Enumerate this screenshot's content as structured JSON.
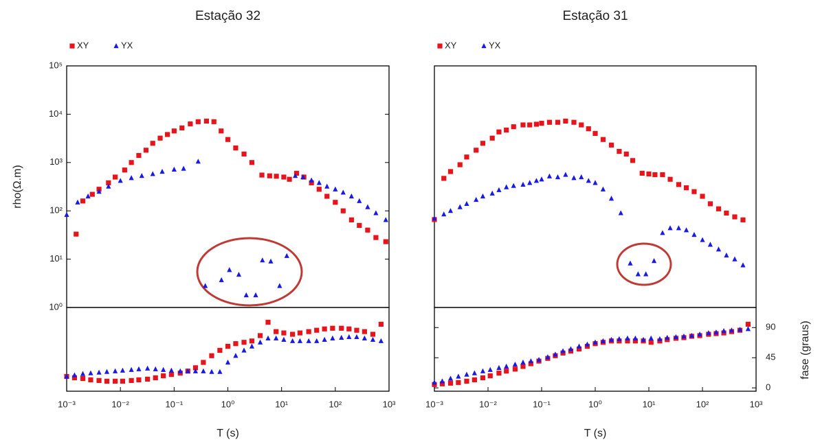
{
  "chart_data": [
    {
      "type": "scatter",
      "title": "Estação 32",
      "ylabel": "rho(Ω.m)",
      "xscale": "log",
      "yscale": "log",
      "xlim": [
        0.001,
        1000
      ],
      "ylim": [
        1,
        100000
      ],
      "yticks": [
        {
          "value": 1,
          "label": "10⁰"
        },
        {
          "value": 10,
          "label": "10¹"
        },
        {
          "value": 100,
          "label": "10²"
        },
        {
          "value": 1000,
          "label": "10³"
        },
        {
          "value": 10000,
          "label": "10⁴"
        },
        {
          "value": 100000,
          "label": "10⁵"
        }
      ],
      "series": [
        {
          "name": "XY",
          "color": "#e8141b",
          "marker": "square",
          "x": [
            0.0015,
            0.002,
            0.003,
            0.004,
            0.006,
            0.008,
            0.012,
            0.016,
            0.022,
            0.03,
            0.04,
            0.055,
            0.075,
            0.1,
            0.14,
            0.2,
            0.28,
            0.4,
            0.55,
            0.75,
            1.0,
            1.4,
            2.0,
            2.8,
            4.3,
            6,
            8,
            11,
            14,
            19,
            26,
            36,
            50,
            70,
            100,
            140,
            200,
            280,
            400,
            570,
            870
          ],
          "values": [
            33,
            160,
            220,
            280,
            380,
            500,
            700,
            1000,
            1400,
            1800,
            2500,
            3200,
            3800,
            4500,
            5200,
            6300,
            7000,
            7200,
            7000,
            4500,
            3000,
            2000,
            1500,
            1000,
            550,
            530,
            520,
            500,
            450,
            600,
            500,
            380,
            280,
            200,
            150,
            100,
            65,
            50,
            40,
            28,
            23
          ]
        },
        {
          "name": "YX",
          "color": "#1a1ae6",
          "marker": "triangle",
          "x": [
            0.001,
            0.0016,
            0.0025,
            0.004,
            0.006,
            0.01,
            0.016,
            0.025,
            0.04,
            0.06,
            0.1,
            0.15,
            0.28,
            0.38,
            0.76,
            1.07,
            1.6,
            2.2,
            3.3,
            4.4,
            6.3,
            9.2,
            12.5,
            18,
            25,
            36,
            50,
            70,
            100,
            140,
            200,
            280,
            400,
            570,
            870
          ],
          "values": [
            83,
            150,
            200,
            250,
            320,
            420,
            480,
            530,
            580,
            650,
            720,
            750,
            1050,
            2.8,
            3.7,
            6,
            4.8,
            1.8,
            1.8,
            9.5,
            9,
            2.8,
            11.7,
            530,
            500,
            430,
            380,
            320,
            280,
            240,
            200,
            160,
            120,
            90,
            65
          ]
        }
      ]
    },
    {
      "type": "scatter",
      "xlabel": "T (s)",
      "xscale": "log",
      "yscale": "linear",
      "xlim": [
        0.001,
        1000
      ],
      "ylim": [
        -5,
        120
      ],
      "xticks": [
        {
          "value": 0.001,
          "label": "10⁻³"
        },
        {
          "value": 0.01,
          "label": "10⁻²"
        },
        {
          "value": 0.1,
          "label": "10⁻¹"
        },
        {
          "value": 1,
          "label": "10⁰"
        },
        {
          "value": 10,
          "label": "10¹"
        },
        {
          "value": 100,
          "label": "10²"
        },
        {
          "value": 1000,
          "label": "10³"
        }
      ],
      "x": [
        0.001,
        0.0014,
        0.002,
        0.0028,
        0.004,
        0.0056,
        0.008,
        0.011,
        0.016,
        0.022,
        0.032,
        0.045,
        0.063,
        0.089,
        0.13,
        0.18,
        0.25,
        0.35,
        0.5,
        0.71,
        1,
        1.4,
        2,
        2.8,
        4,
        5.6,
        7.9,
        11,
        16,
        22,
        32,
        45,
        63,
        89,
        130,
        180,
        250,
        350,
        500,
        710
      ],
      "series": [
        {
          "color": "#e8141b",
          "marker": "square",
          "values": [
            17,
            15,
            14,
            12,
            11,
            10,
            10,
            10,
            11,
            12,
            13,
            15,
            18,
            20,
            22,
            25,
            30,
            38,
            48,
            56,
            62,
            66,
            68,
            70,
            78,
            98,
            84,
            82,
            80,
            82,
            84,
            86,
            88,
            89,
            89,
            88,
            86,
            84,
            80,
            95
          ]
        },
        {
          "color": "#1a1ae6",
          "marker": "triangle",
          "values": [
            17,
            19,
            21,
            22,
            23,
            24,
            25,
            26,
            27,
            28,
            29,
            28,
            27,
            26,
            25,
            25,
            25,
            25,
            24,
            24,
            38,
            48,
            56,
            62,
            68,
            74,
            74,
            72,
            70,
            70,
            70,
            70,
            72,
            74,
            75,
            76,
            76,
            74,
            72,
            70
          ]
        }
      ]
    },
    {
      "type": "scatter",
      "title": "Estação 31",
      "xscale": "log",
      "yscale": "log",
      "xlim": [
        0.001,
        1000
      ],
      "ylim": [
        1,
        100000
      ],
      "series": [
        {
          "name": "XY",
          "color": "#e8141b",
          "marker": "square",
          "x": [
            0.001,
            0.0015,
            0.002,
            0.003,
            0.004,
            0.006,
            0.008,
            0.012,
            0.016,
            0.022,
            0.03,
            0.045,
            0.06,
            0.08,
            0.1,
            0.14,
            0.2,
            0.28,
            0.4,
            0.55,
            0.75,
            1,
            1.4,
            2,
            2.8,
            3.8,
            5,
            7.5,
            10,
            13,
            18,
            25,
            36,
            50,
            70,
            100,
            140,
            200,
            280,
            400,
            570
          ],
          "values": [
            66,
            470,
            650,
            900,
            1300,
            1800,
            2500,
            3200,
            4300,
            4700,
            5500,
            6000,
            6000,
            6200,
            6500,
            6800,
            6800,
            7200,
            6800,
            6000,
            5000,
            4000,
            3000,
            2300,
            1700,
            1500,
            1100,
            600,
            580,
            560,
            560,
            450,
            350,
            300,
            250,
            200,
            140,
            110,
            90,
            75,
            65
          ]
        },
        {
          "name": "YX",
          "color": "#1a1ae6",
          "marker": "triangle",
          "x": [
            0.001,
            0.0015,
            0.002,
            0.003,
            0.004,
            0.006,
            0.008,
            0.012,
            0.016,
            0.022,
            0.03,
            0.045,
            0.06,
            0.08,
            0.1,
            0.14,
            0.2,
            0.28,
            0.4,
            0.55,
            0.75,
            1,
            1.4,
            2,
            3,
            4.5,
            6.3,
            8.8,
            12.5,
            18,
            25,
            36,
            50,
            70,
            100,
            140,
            200,
            280,
            400,
            570
          ],
          "values": [
            70,
            85,
            100,
            120,
            140,
            170,
            200,
            230,
            270,
            310,
            330,
            350,
            380,
            420,
            450,
            520,
            500,
            560,
            480,
            500,
            420,
            380,
            280,
            180,
            90,
            8.2,
            4.9,
            4.9,
            9.2,
            35,
            44,
            44,
            40,
            32,
            25,
            20,
            16,
            12,
            10,
            7.5
          ]
        }
      ]
    },
    {
      "type": "scatter",
      "xlabel": "T (s)",
      "ylabel": "fase (graus)",
      "xscale": "log",
      "yscale": "linear",
      "xlim": [
        0.001,
        1000
      ],
      "ylim": [
        -5,
        120
      ],
      "yticks": [
        0,
        45,
        90
      ],
      "xticks": [
        {
          "value": 0.001,
          "label": "10⁻³"
        },
        {
          "value": 0.01,
          "label": "10⁻²"
        },
        {
          "value": 0.1,
          "label": "10⁻¹"
        },
        {
          "value": 1,
          "label": "10⁰"
        },
        {
          "value": 10,
          "label": "10¹"
        },
        {
          "value": 100,
          "label": "10²"
        },
        {
          "value": 1000,
          "label": "10³"
        }
      ],
      "x": [
        0.001,
        0.0014,
        0.002,
        0.0028,
        0.004,
        0.0056,
        0.008,
        0.011,
        0.016,
        0.022,
        0.032,
        0.045,
        0.063,
        0.089,
        0.13,
        0.18,
        0.25,
        0.35,
        0.5,
        0.71,
        1,
        1.4,
        2,
        2.8,
        4,
        5.6,
        7.9,
        11,
        16,
        22,
        32,
        45,
        63,
        89,
        130,
        180,
        250,
        350,
        500,
        710
      ],
      "series": [
        {
          "color": "#e8141b",
          "marker": "square",
          "values": [
            5,
            6,
            7,
            8,
            10,
            12,
            15,
            18,
            22,
            25,
            28,
            32,
            36,
            40,
            44,
            48,
            52,
            55,
            58,
            62,
            66,
            68,
            70,
            70,
            70,
            70,
            70,
            68,
            70,
            72,
            74,
            75,
            77,
            78,
            80,
            81,
            82,
            84,
            86,
            95
          ]
        },
        {
          "color": "#1a1ae6",
          "marker": "triangle",
          "values": [
            8,
            10,
            14,
            17,
            20,
            22,
            25,
            27,
            30,
            32,
            35,
            38,
            40,
            42,
            46,
            50,
            55,
            58,
            62,
            65,
            68,
            70,
            72,
            73,
            74,
            74,
            72,
            74,
            73,
            75,
            76,
            77,
            78,
            80,
            82,
            83,
            85,
            86,
            87,
            88
          ]
        }
      ]
    }
  ]
}
